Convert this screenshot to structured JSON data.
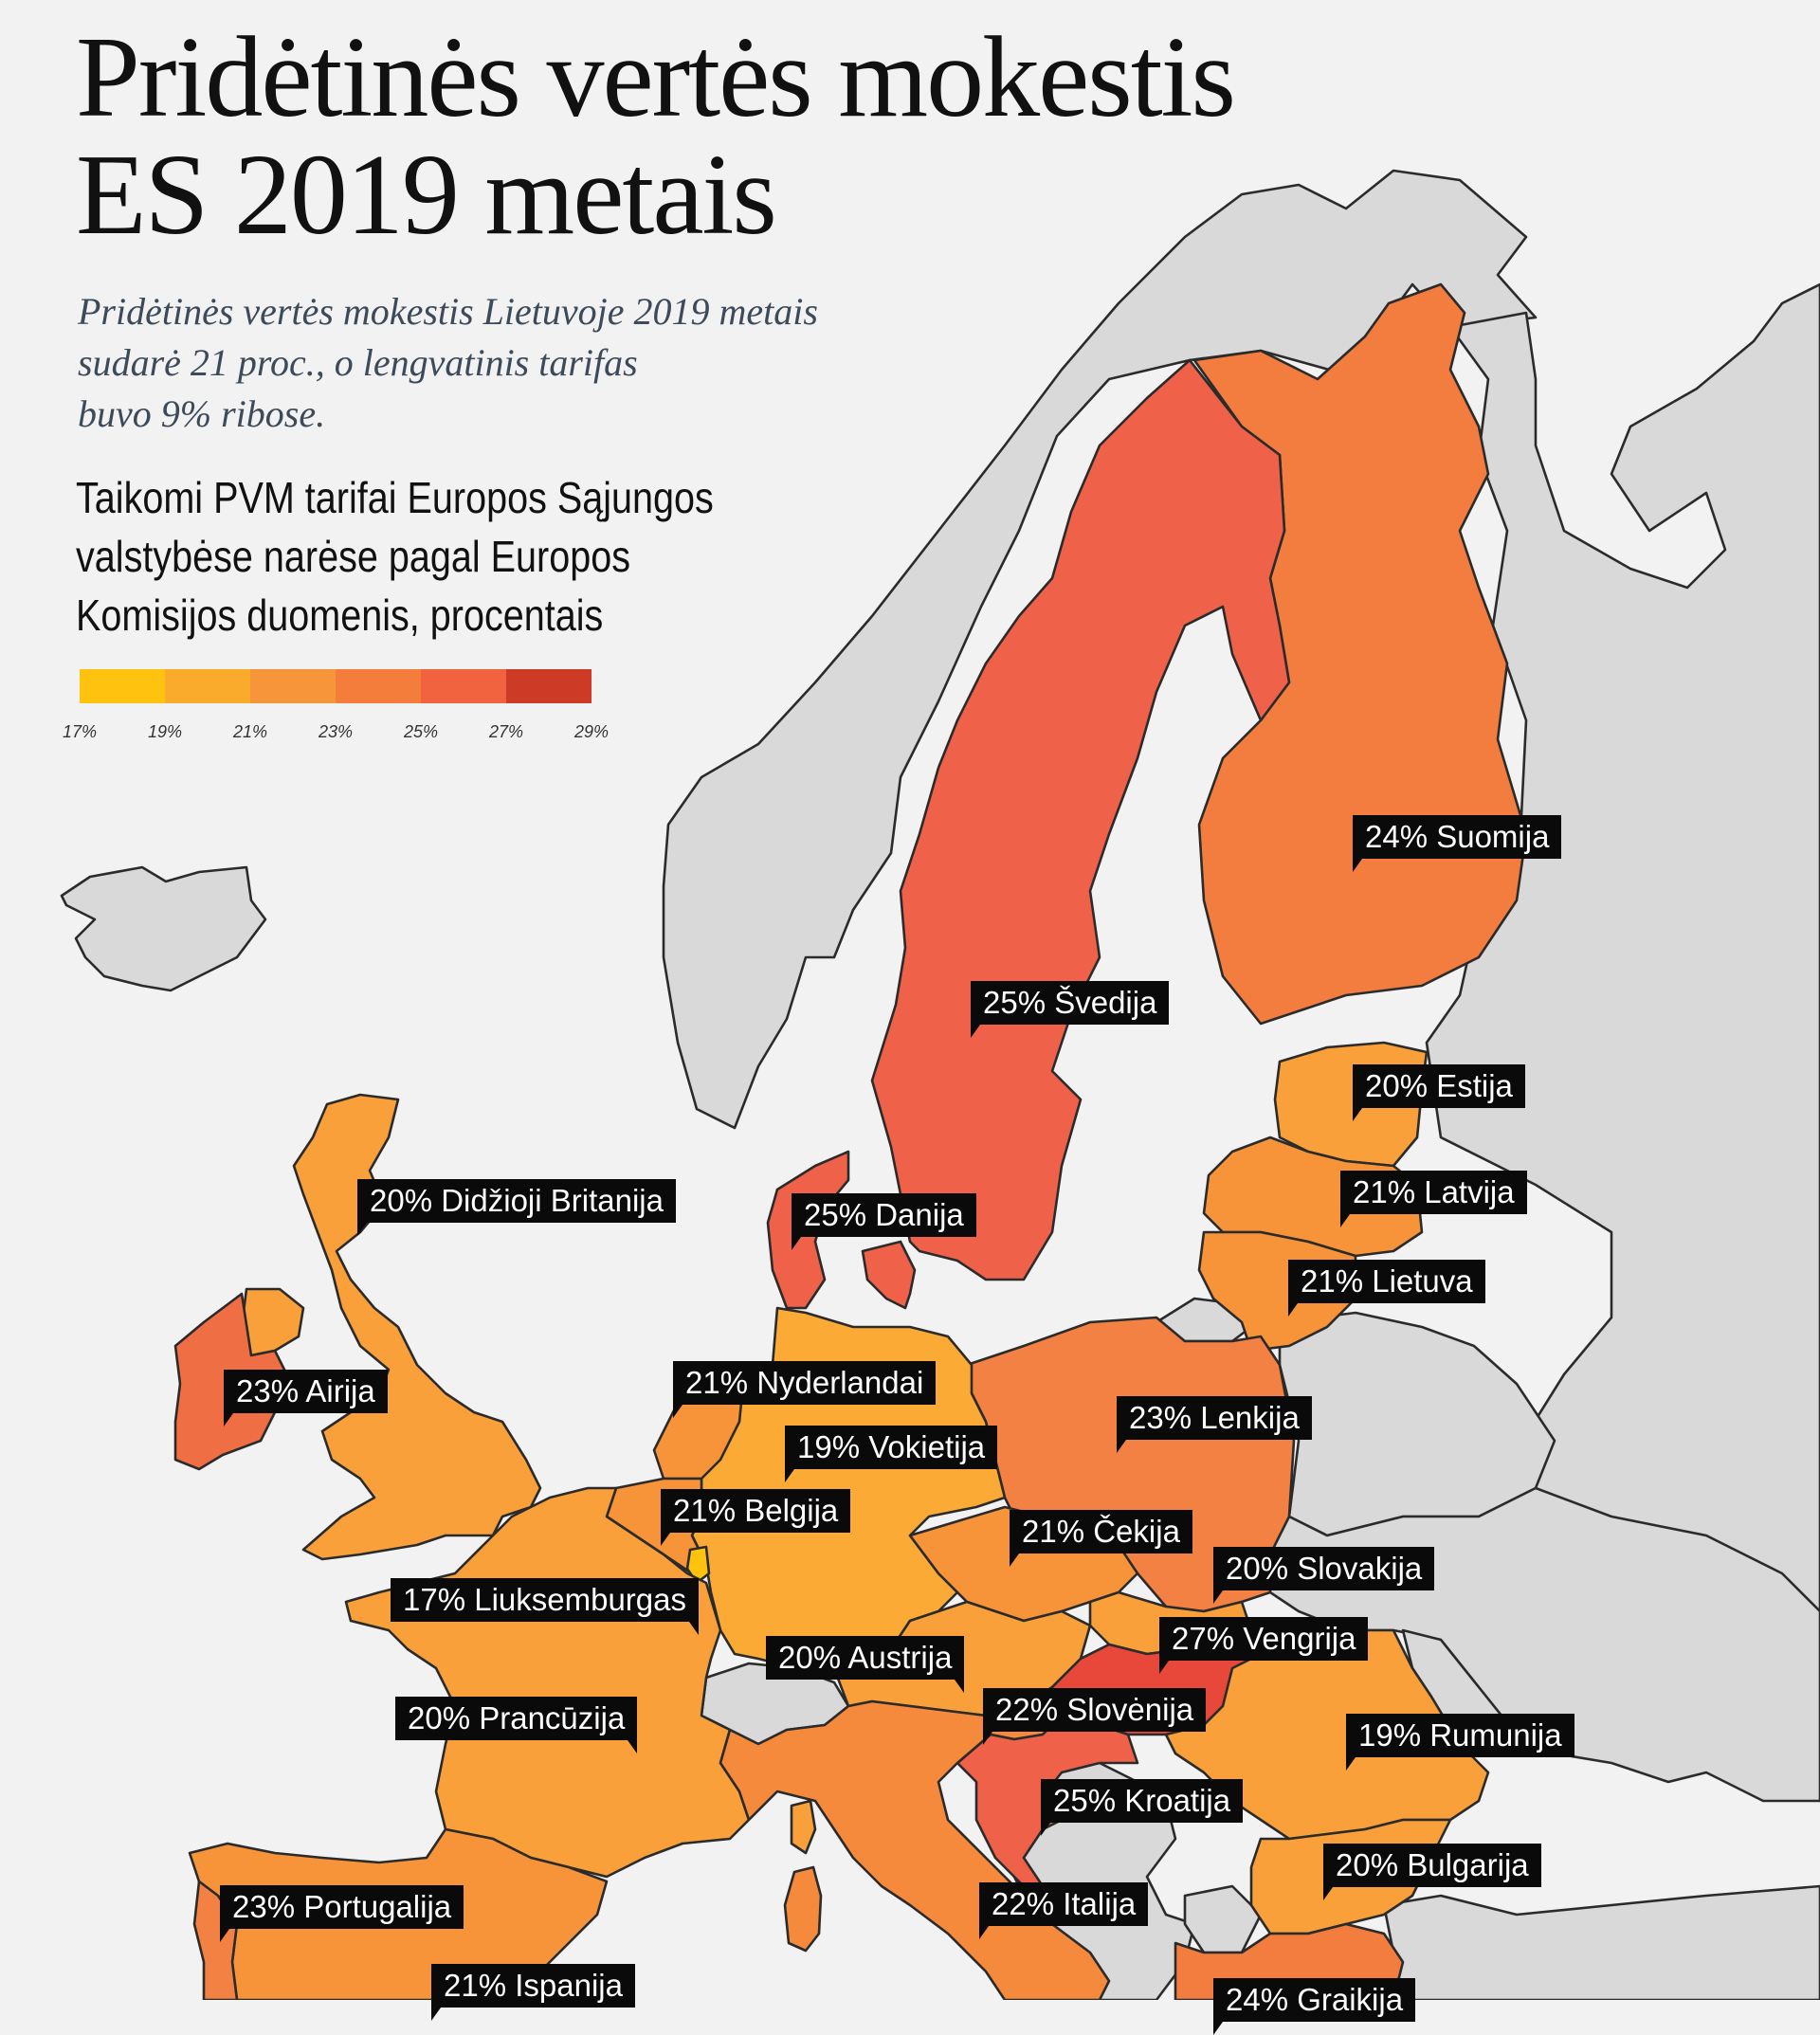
{
  "title_lines": [
    "Pridėtinės vertės mokestis",
    "ES 2019 metais"
  ],
  "subtitle_lines": [
    "Pridėtinės vertės mokestis Lietuvoje 2019 metais",
    "sudarė 21 proc., o lengvatinis tarifas",
    "buvo 9% ribose."
  ],
  "heading_lines": [
    "Taikomi PVM tarifai Europos Sąjungos",
    "valstybėse narėse pagal Europos",
    "Komisijos duomenis, procentais"
  ],
  "legend": {
    "colors": [
      "#ffc20e",
      "#fbab2c",
      "#f7953a",
      "#f47d3c",
      "#f1623e",
      "#cd3b26"
    ],
    "ticks": [
      "17%",
      "19%",
      "21%",
      "23%",
      "25%",
      "27%",
      "29%"
    ]
  },
  "countries": [
    {
      "name": "Suomija",
      "rate": 24,
      "label": "24% Suomija",
      "color": "#f37d3f"
    },
    {
      "name": "Švedija",
      "rate": 25,
      "label": "25% Švedija",
      "color": "#f0614a"
    },
    {
      "name": "Estija",
      "rate": 20,
      "label": "20% Estija",
      "color": "#f9a03b"
    },
    {
      "name": "Didžioji Britanija",
      "rate": 20,
      "label": "20% Didžioji Britanija",
      "color": "#f9a03b"
    },
    {
      "name": "Latvija",
      "rate": 21,
      "label": "21% Latvija",
      "color": "#f7943a"
    },
    {
      "name": "Danija",
      "rate": 25,
      "label": "25% Danija",
      "color": "#f0614a"
    },
    {
      "name": "Lietuva",
      "rate": 21,
      "label": "21% Lietuva",
      "color": "#f7943a"
    },
    {
      "name": "Airija",
      "rate": 23,
      "label": "23% Airija",
      "color": "#f06e43"
    },
    {
      "name": "Nyderlandai",
      "rate": 21,
      "label": "21% Nyderlandai",
      "color": "#f7943a"
    },
    {
      "name": "Lenkija",
      "rate": 23,
      "label": "23% Lenkija",
      "color": "#f38143"
    },
    {
      "name": "Vokietija",
      "rate": 19,
      "label": "19% Vokietija",
      "color": "#fbab35"
    },
    {
      "name": "Belgija",
      "rate": 21,
      "label": "21% Belgija",
      "color": "#f7943a"
    },
    {
      "name": "Čekija",
      "rate": 21,
      "label": "21% Čekija",
      "color": "#f7943a"
    },
    {
      "name": "Slovakija",
      "rate": 20,
      "label": "20% Slovakija",
      "color": "#f9a03b"
    },
    {
      "name": "Liuksemburgas",
      "rate": 17,
      "label": "17% Liuksemburgas",
      "color": "#ffc20e"
    },
    {
      "name": "Vengrija",
      "rate": 27,
      "label": "27% Vengrija",
      "color": "#e8483a"
    },
    {
      "name": "Austrija",
      "rate": 20,
      "label": "20% Austrija",
      "color": "#f9a03b"
    },
    {
      "name": "Slovėnija",
      "rate": 22,
      "label": "22% Slovėnija",
      "color": "#f58a3c"
    },
    {
      "name": "Prancūzija",
      "rate": 20,
      "label": "20% Prancūzija",
      "color": "#f9a03b"
    },
    {
      "name": "Rumunija",
      "rate": 19,
      "label": "19% Rumunija",
      "color": "#fbab35"
    },
    {
      "name": "Kroatija",
      "rate": 25,
      "label": "25% Kroatija",
      "color": "#f0614a"
    },
    {
      "name": "Bulgarija",
      "rate": 20,
      "label": "20% Bulgarija",
      "color": "#f9a03b"
    },
    {
      "name": "Portugalija",
      "rate": 23,
      "label": "23% Portugalija",
      "color": "#f38143"
    },
    {
      "name": "Italija",
      "rate": 22,
      "label": "22% Italija",
      "color": "#f58a3c"
    },
    {
      "name": "Ispanija",
      "rate": 21,
      "label": "21% Ispanija",
      "color": "#f7943a"
    },
    {
      "name": "Graikija",
      "rate": 24,
      "label": "24% Graikija",
      "color": "#f37d3f"
    }
  ]
}
